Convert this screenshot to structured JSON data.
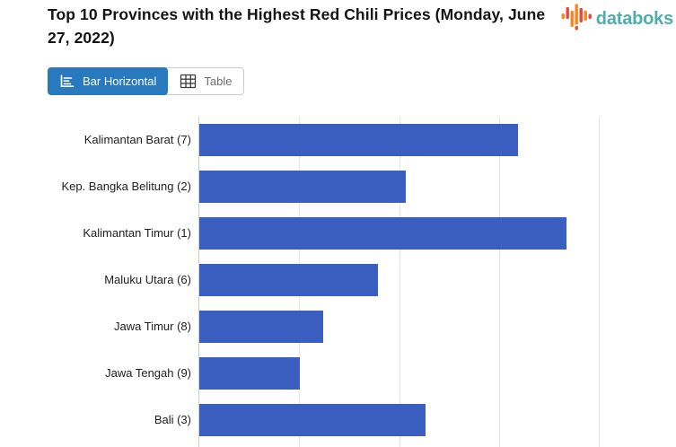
{
  "header": {
    "title": "Top 10 Provinces with the Highest Red Chili Prices (Monday, June 27, 2022)",
    "title_color": "#141414",
    "logo": {
      "text": "databoks",
      "text_color": "#4FAEAB",
      "icon_orange": "#F6871F",
      "icon_red": "#E8473C"
    }
  },
  "toolbar": {
    "view_toggle": [
      {
        "label": "Bar Horizontal",
        "icon": "bar-horizontal-icon",
        "active": true
      },
      {
        "label": "Table",
        "icon": "table-icon",
        "active": false
      }
    ],
    "active_bg": "#2879BD",
    "active_text": "#FFFFFF",
    "inactive_text": "#6E6E6E",
    "inactive_border": "#C9CDD3"
  },
  "chart_data": {
    "type": "bar",
    "orientation": "horizontal",
    "title": "Top 10 Provinces with the Highest Red Chili Prices (Monday, June 27, 2022)",
    "categories": [
      "Kalimantan Barat (7)",
      "Kep. Bangka Belitung (2)",
      "Kalimantan Timur (1)",
      "Maluku Utara (6)",
      "Jawa Timur (8)",
      "Jawa Tengah (9)",
      "Bali (3)"
    ],
    "values": [
      3.19,
      2.07,
      3.67,
      1.79,
      1.24,
      1.01,
      2.26
    ],
    "value_units": "gridline intervals (x-axis tick labels not visible; chart cropped at bottom of screenshot)",
    "xlim": [
      0,
      4.77
    ],
    "gridline_interval": 1,
    "grid": true,
    "visible_rows": 7,
    "xlabel": "",
    "ylabel": "",
    "bar_color": "#3B5FC0",
    "gridline_color": "#E5E5E5",
    "axis_line_color": "#CFCFCF",
    "label_color": "#202124"
  }
}
